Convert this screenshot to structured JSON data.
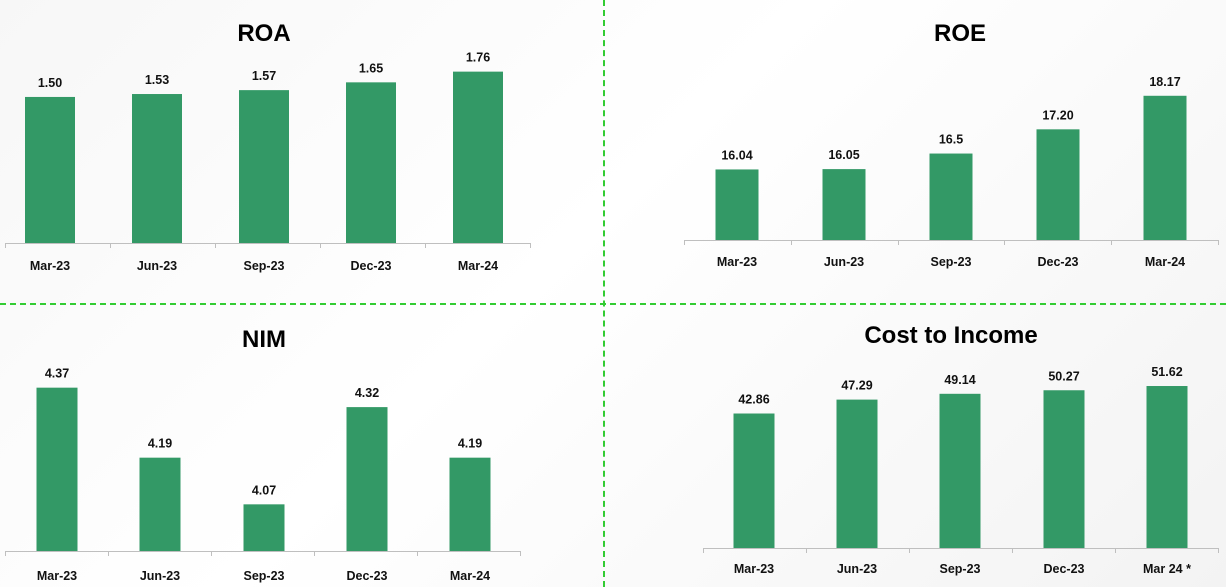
{
  "colors": {
    "bar": "#339966",
    "divider": "#33cc33",
    "axis": "#bfbfbf"
  },
  "chart_data": [
    {
      "type": "bar",
      "title": "ROA",
      "categories": [
        "Mar-23",
        "Jun-23",
        "Sep-23",
        "Dec-23",
        "Mar-24"
      ],
      "values": [
        1.5,
        1.53,
        1.57,
        1.65,
        1.76
      ],
      "labels": [
        "1.50",
        "1.53",
        "1.57",
        "1.65",
        "1.76"
      ],
      "ylim": [
        0,
        1.9
      ]
    },
    {
      "type": "bar",
      "title": "ROE",
      "categories": [
        "Mar-23",
        "Jun-23",
        "Sep-23",
        "Dec-23",
        "Mar-24"
      ],
      "values": [
        16.04,
        16.05,
        16.5,
        17.2,
        18.17
      ],
      "labels": [
        "16.04",
        "16.05",
        "16.5",
        "17.20",
        "18.17"
      ],
      "ylim": [
        14.0,
        18.8
      ]
    },
    {
      "type": "bar",
      "title": "NIM",
      "categories": [
        "Mar-23",
        "Jun-23",
        "Sep-23",
        "Dec-23",
        "Mar-24"
      ],
      "values": [
        4.37,
        4.19,
        4.07,
        4.32,
        4.19
      ],
      "labels": [
        "4.37",
        "4.19",
        "4.07",
        "4.32",
        "4.19"
      ],
      "ylim": [
        3.95,
        4.4
      ]
    },
    {
      "type": "bar",
      "title": "Cost to Income",
      "categories": [
        "Mar-23",
        "Jun-23",
        "Sep-23",
        "Dec-23",
        "Mar 24 *"
      ],
      "values": [
        42.86,
        47.29,
        49.14,
        50.27,
        51.62
      ],
      "labels": [
        "42.86",
        "47.29",
        "49.14",
        "50.27",
        "51.62"
      ],
      "ylim": [
        0,
        58
      ]
    }
  ]
}
